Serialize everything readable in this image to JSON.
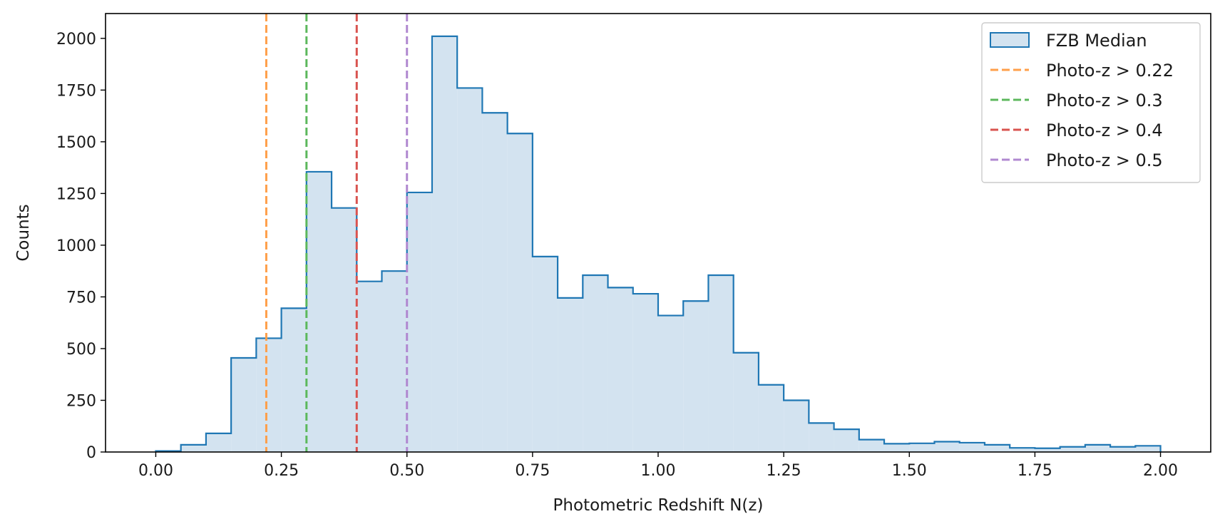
{
  "chart_data": {
    "type": "histogram",
    "title": "",
    "xlabel": "Photometric Redshift N(z)",
    "ylabel": "Counts",
    "xlim": [
      -0.1,
      2.1
    ],
    "ylim": [
      0,
      2120
    ],
    "grid": false,
    "legend_position": "top-right",
    "xticks": [
      "0.00",
      "0.25",
      "0.50",
      "0.75",
      "1.00",
      "1.25",
      "1.50",
      "1.75",
      "2.00"
    ],
    "yticks": [
      "0",
      "250",
      "500",
      "750",
      "1000",
      "1250",
      "1500",
      "1750",
      "2000"
    ],
    "series": [
      {
        "name": "FZB Median",
        "color": "#1f77b4",
        "fill_color": "#d3e3f0",
        "bin_edges": [
          0.0,
          0.05,
          0.1,
          0.15,
          0.2,
          0.25,
          0.3,
          0.35,
          0.4,
          0.45,
          0.5,
          0.55,
          0.6,
          0.65,
          0.7,
          0.75,
          0.8,
          0.85,
          0.9,
          0.95,
          1.0,
          1.05,
          1.1,
          1.15,
          1.2,
          1.25,
          1.3,
          1.35,
          1.4,
          1.45,
          1.5,
          1.55,
          1.6,
          1.65,
          1.7,
          1.75,
          1.8,
          1.85,
          1.9,
          1.95,
          2.0
        ],
        "counts": [
          5,
          35,
          90,
          455,
          550,
          695,
          1355,
          1180,
          825,
          875,
          1255,
          2010,
          1760,
          1640,
          1540,
          945,
          745,
          855,
          795,
          765,
          660,
          730,
          855,
          480,
          325,
          250,
          140,
          110,
          60,
          40,
          42,
          50,
          45,
          35,
          20,
          18,
          25,
          35,
          25,
          30
        ]
      }
    ],
    "vlines": [
      {
        "name": "Photo-z > 0.22",
        "x": 0.22,
        "color": "#ff9f4a"
      },
      {
        "name": "Photo-z > 0.3",
        "x": 0.3,
        "color": "#5cb85c"
      },
      {
        "name": "Photo-z > 0.4",
        "x": 0.4,
        "color": "#d9534f"
      },
      {
        "name": "Photo-z > 0.5",
        "x": 0.5,
        "color": "#b088d0"
      }
    ]
  }
}
